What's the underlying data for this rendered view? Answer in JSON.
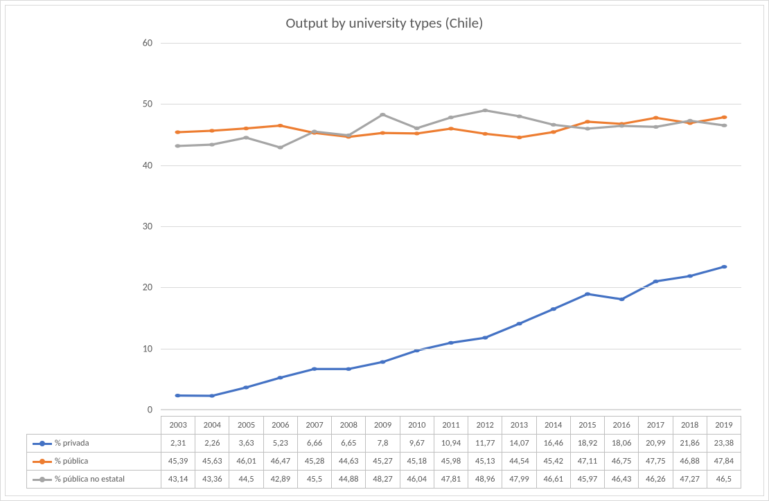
{
  "chart": {
    "type": "line",
    "title": "Output by university types (Chile)",
    "title_fontsize": 21,
    "title_color": "#595959",
    "background_color": "#ffffff",
    "border_color": "#d9d9d9",
    "grid_color": "#d9d9d9",
    "axis_label_color": "#595959",
    "table_border_color": "#bfbfbf",
    "ylim": [
      0,
      60
    ],
    "ytick_step": 10,
    "yticks": [
      0,
      10,
      20,
      30,
      40,
      50,
      60
    ],
    "years": [
      "2003",
      "2004",
      "2005",
      "2006",
      "2007",
      "2008",
      "2009",
      "2010",
      "2011",
      "2012",
      "2013",
      "2014",
      "2015",
      "2016",
      "2017",
      "2018",
      "2019"
    ],
    "line_width": 3.2,
    "marker_radius": 5,
    "legend_col_width": 194,
    "series": [
      {
        "name": "% privada",
        "color": "#4472c4",
        "values": [
          2.31,
          2.26,
          3.63,
          5.23,
          6.66,
          6.65,
          7.8,
          9.67,
          10.94,
          11.77,
          14.07,
          16.46,
          18.92,
          18.06,
          20.99,
          21.86,
          23.38
        ],
        "labels": [
          "2,31",
          "2,26",
          "3,63",
          "5,23",
          "6,66",
          "6,65",
          "7,8",
          "9,67",
          "10,94",
          "11,77",
          "14,07",
          "16,46",
          "18,92",
          "18,06",
          "20,99",
          "21,86",
          "23,38"
        ]
      },
      {
        "name": "% pública",
        "color": "#ed7d31",
        "values": [
          45.39,
          45.63,
          46.01,
          46.47,
          45.28,
          44.63,
          45.27,
          45.18,
          45.98,
          45.13,
          44.54,
          45.42,
          47.11,
          46.75,
          47.75,
          46.88,
          47.84
        ],
        "labels": [
          "45,39",
          "45,63",
          "46,01",
          "46,47",
          "45,28",
          "44,63",
          "45,27",
          "45,18",
          "45,98",
          "45,13",
          "44,54",
          "45,42",
          "47,11",
          "46,75",
          "47,75",
          "46,88",
          "47,84"
        ]
      },
      {
        "name": "% pública no estatal",
        "color": "#a5a5a5",
        "values": [
          43.14,
          43.36,
          44.5,
          42.89,
          45.5,
          44.88,
          48.27,
          46.04,
          47.81,
          48.96,
          47.99,
          46.61,
          45.97,
          46.43,
          46.26,
          47.27,
          46.5
        ],
        "labels": [
          "43,14",
          "43,36",
          "44,5",
          "42,89",
          "45,5",
          "44,88",
          "48,27",
          "46,04",
          "47,81",
          "48,96",
          "47,99",
          "46,61",
          "45,97",
          "46,43",
          "46,26",
          "47,27",
          "46,5"
        ]
      }
    ]
  }
}
